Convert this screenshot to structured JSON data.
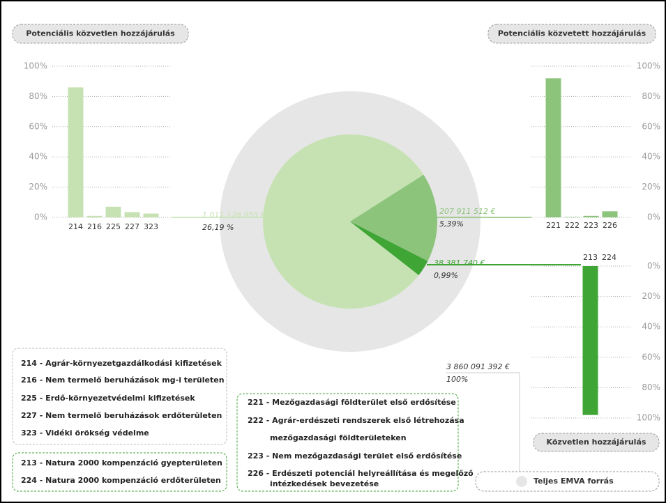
{
  "chart_data": [
    {
      "type": "pie",
      "name": "Teljes EMVA forrás",
      "total": 3860091392,
      "total_label": "3 860 091 392 €",
      "total_percent": 100,
      "total_percent_label": "100%",
      "total_color": "#e6e6e6",
      "values": [
        1011128955,
        207911512,
        38381740
      ],
      "value_labels": [
        "1 011 128 955 €",
        "207 911 512 €",
        "38 381 740 €"
      ],
      "percents": [
        26.19,
        5.39,
        0.99
      ],
      "percent_labels": [
        "26,19 %",
        "5,39%",
        "0,99%"
      ],
      "colors": [
        "#c6e2b3",
        "#8cc47b",
        "#3fa535"
      ]
    },
    {
      "type": "bar",
      "title": "Potenciális közvetlen hozzájárulás",
      "categories": [
        "214",
        "216",
        "225",
        "227",
        "323"
      ],
      "values": [
        86,
        1,
        7,
        3.5,
        2.5
      ],
      "color": "#c6e2b3",
      "ylim": [
        0,
        100
      ],
      "yticks": [
        {
          "value": 0,
          "label": "0%"
        },
        {
          "value": 20,
          "label": "20%"
        },
        {
          "value": 40,
          "label": "40%"
        },
        {
          "value": 60,
          "label": "60%"
        },
        {
          "value": 80,
          "label": "80%"
        },
        {
          "value": 100,
          "label": "100%"
        }
      ],
      "grid": true
    },
    {
      "type": "bar",
      "title": "Potenciális közvetett hozzájárulás",
      "categories": [
        "221",
        "222",
        "223",
        "226"
      ],
      "values": [
        92,
        0.3,
        1,
        4
      ],
      "color": "#8cc47b",
      "ylim": [
        0,
        100
      ],
      "yticks": [
        {
          "value": 0,
          "label": "0%"
        },
        {
          "value": 20,
          "label": "20%"
        },
        {
          "value": 40,
          "label": "40%"
        },
        {
          "value": 60,
          "label": "60%"
        },
        {
          "value": 80,
          "label": "80%"
        },
        {
          "value": 100,
          "label": "100%"
        }
      ],
      "grid": true
    },
    {
      "type": "bar",
      "title": "Közvetlen hozzájárulás",
      "inverted": true,
      "categories": [
        "213",
        "224"
      ],
      "values": [
        98,
        0
      ],
      "color": "#3fa535",
      "ylim": [
        0,
        100
      ],
      "yticks": [
        {
          "value": 0,
          "label": "0%"
        },
        {
          "value": 20,
          "label": "20%"
        },
        {
          "value": 40,
          "label": "40%"
        },
        {
          "value": 60,
          "label": "60%"
        },
        {
          "value": 80,
          "label": "80%"
        },
        {
          "value": 100,
          "label": "100%"
        }
      ],
      "grid": true
    }
  ],
  "legends": [
    {
      "items": [
        [
          "214 - Agrár-környezetgazdálkodási kifizetések"
        ],
        [
          "216 - Nem termelő beruházások mg-i területen"
        ],
        [
          "225 - Erdő-környezetvédelmi kifizetések"
        ],
        [
          "227 - Nem termelő beruházások erdőterületen"
        ],
        [
          "323 - Vidéki örökség védelme"
        ]
      ]
    },
    {
      "items": [
        [
          "213 - Natura 2000 kompenzáció gyepterületen"
        ],
        [
          "224 - Natura 2000 kompenzáció erdőterületen"
        ]
      ]
    },
    {
      "items": [
        [
          "221 - Mezőgazdasági földterület első erdősítése"
        ],
        [
          "222 - Agrár-erdészeti rendszerek első létrehozása",
          "mezőgazdasági földterületeken"
        ],
        [
          "223 - Nem mezőgazdasági terület első erdősítése"
        ],
        [
          "226 - Erdészeti potenciál helyreállítása és megelőző",
          "intézkedések bevezetése"
        ]
      ]
    }
  ]
}
